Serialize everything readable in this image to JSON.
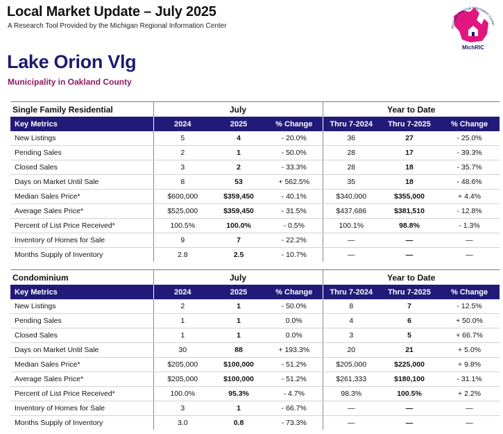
{
  "header": {
    "title": "Local Market Update – July 2025",
    "subtitle": "A Research Tool Provided by the Michigan Regional Information Center",
    "logo_arc_text": "Michigan Regional Information Center",
    "logo_text": "MichRIC"
  },
  "municipality": "Lake Orion Vlg",
  "county": "Municipality in Oakland County",
  "colors": {
    "navy": "#221a78",
    "magenta": "#e0177e",
    "title_blue": "#1f1a6e",
    "county_purple": "#8e1a63"
  },
  "sections": [
    {
      "name": "Single Family Residential",
      "july_label": "July",
      "ytd_label": "Year to Date",
      "columns": [
        "Key Metrics",
        "2024",
        "2025",
        "% Change",
        "Thru 7-2024",
        "Thru 7-2025",
        "% Change"
      ],
      "rows": [
        [
          "New Listings",
          "5",
          "4",
          "- 20.0%",
          "36",
          "27",
          "- 25.0%"
        ],
        [
          "Pending Sales",
          "2",
          "1",
          "- 50.0%",
          "28",
          "17",
          "- 39.3%"
        ],
        [
          "Closed Sales",
          "3",
          "2",
          "- 33.3%",
          "28",
          "18",
          "- 35.7%"
        ],
        [
          "Days on Market Until Sale",
          "8",
          "53",
          "+ 562.5%",
          "35",
          "18",
          "- 48.6%"
        ],
        [
          "Median Sales Price*",
          "$600,000",
          "$359,450",
          "- 40.1%",
          "$340,000",
          "$355,000",
          "+ 4.4%"
        ],
        [
          "Average Sales Price*",
          "$525,000",
          "$359,450",
          "- 31.5%",
          "$437,686",
          "$381,510",
          "- 12.8%"
        ],
        [
          "Percent of List Price Received*",
          "100.5%",
          "100.0%",
          "- 0.5%",
          "100.1%",
          "98.8%",
          "- 1.3%"
        ],
        [
          "Inventory of Homes for Sale",
          "9",
          "7",
          "- 22.2%",
          "—",
          "—",
          "—"
        ],
        [
          "Months Supply of Inventory",
          "2.8",
          "2.5",
          "- 10.7%",
          "—",
          "—",
          "—"
        ]
      ]
    },
    {
      "name": "Condominium",
      "july_label": "July",
      "ytd_label": "Year to Date",
      "columns": [
        "Key Metrics",
        "2024",
        "2025",
        "% Change",
        "Thru 7-2024",
        "Thru 7-2025",
        "% Change"
      ],
      "rows": [
        [
          "New Listings",
          "2",
          "1",
          "- 50.0%",
          "8",
          "7",
          "- 12.5%"
        ],
        [
          "Pending Sales",
          "1",
          "1",
          "0.0%",
          "4",
          "6",
          "+ 50.0%"
        ],
        [
          "Closed Sales",
          "1",
          "1",
          "0.0%",
          "3",
          "5",
          "+ 66.7%"
        ],
        [
          "Days on Market Until Sale",
          "30",
          "88",
          "+ 193.3%",
          "20",
          "21",
          "+ 5.0%"
        ],
        [
          "Median Sales Price*",
          "$205,000",
          "$100,000",
          "- 51.2%",
          "$205,000",
          "$225,000",
          "+ 9.8%"
        ],
        [
          "Average Sales Price*",
          "$205,000",
          "$100,000",
          "- 51.2%",
          "$261,333",
          "$180,100",
          "- 31.1%"
        ],
        [
          "Percent of List Price Received*",
          "100.0%",
          "95.3%",
          "- 4.7%",
          "98.3%",
          "100.5%",
          "+ 2.2%"
        ],
        [
          "Inventory of Homes for Sale",
          "3",
          "1",
          "- 66.7%",
          "—",
          "—",
          "—"
        ],
        [
          "Months Supply of Inventory",
          "3.0",
          "0.8",
          "- 73.3%",
          "—",
          "—",
          "—"
        ]
      ]
    }
  ]
}
